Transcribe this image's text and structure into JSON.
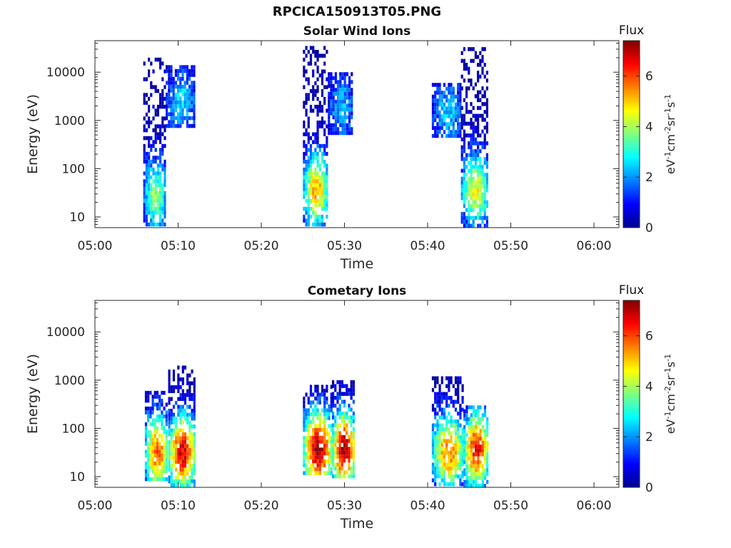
{
  "figure": {
    "title": "RPCICA150913T05.PNG"
  },
  "colors": {
    "jet": [
      "#00008f",
      "#0000ff",
      "#0080ff",
      "#00ffff",
      "#80ff80",
      "#ffff00",
      "#ff8000",
      "#ff0000",
      "#800000"
    ],
    "axis": "#262626",
    "background": "#ffffff"
  },
  "chart_data": [
    {
      "type": "heatmap",
      "title": "Solar Wind Ions",
      "xlabel": "Time",
      "ylabel": "Energy (eV)",
      "yscale": "log",
      "xlim": [
        "05:00",
        "06:03"
      ],
      "ylim": [
        6,
        45000
      ],
      "x_ticks": [
        "05:00",
        "05:10",
        "05:20",
        "05:30",
        "05:40",
        "05:50",
        "06:00"
      ],
      "y_ticks": [
        10,
        100,
        1000,
        10000
      ],
      "y_tick_labels": [
        "10",
        "100",
        "1000",
        "10000"
      ],
      "colorbar": {
        "title": "Flux",
        "label": "eV-1cm-2sr-1s-1",
        "label_parts": [
          [
            "eV",
            ""
          ],
          [
            "-1",
            "sup"
          ],
          [
            "cm",
            ""
          ],
          [
            "-2",
            "sup"
          ],
          [
            "sr",
            ""
          ],
          [
            "-1",
            "sup"
          ],
          [
            "s",
            ""
          ],
          [
            "-1",
            "sup"
          ]
        ],
        "range": [
          0,
          7.4
        ],
        "ticks": [
          0,
          2,
          4,
          6
        ]
      },
      "bursts": [
        {
          "start": "05:05.8",
          "end": "05:08.5",
          "emin": 6,
          "emax": 20000,
          "peak_energy": 30,
          "peak_flux": 3.8
        },
        {
          "start": "05:08.5",
          "end": "05:12.0",
          "emin": 700,
          "emax": 14000,
          "peak_energy": 2500,
          "peak_flux": 2.5
        },
        {
          "start": "05:25.0",
          "end": "05:28.0",
          "emin": 6,
          "emax": 35000,
          "peak_energy": 40,
          "peak_flux": 5.2
        },
        {
          "start": "05:28.0",
          "end": "05:31.0",
          "emin": 500,
          "emax": 10000,
          "peak_energy": 2000,
          "peak_flux": 2.2
        },
        {
          "start": "05:40.5",
          "end": "05:44.0",
          "emin": 400,
          "emax": 6000,
          "peak_energy": 1500,
          "peak_flux": 2.3
        },
        {
          "start": "05:44.0",
          "end": "05:47.3",
          "emin": 6,
          "emax": 33000,
          "peak_energy": 40,
          "peak_flux": 4.5
        }
      ]
    },
    {
      "type": "heatmap",
      "title": "Cometary Ions",
      "xlabel": "Time",
      "ylabel": "Energy (eV)",
      "yscale": "log",
      "xlim": [
        "05:00",
        "06:03"
      ],
      "ylim": [
        6,
        45000
      ],
      "x_ticks": [
        "05:00",
        "05:10",
        "05:20",
        "05:30",
        "05:40",
        "05:50",
        "06:00"
      ],
      "y_ticks": [
        10,
        100,
        1000,
        10000
      ],
      "y_tick_labels": [
        "10",
        "100",
        "1000",
        "10000"
      ],
      "colorbar": {
        "title": "Flux",
        "label": "eV-1cm-2sr-1s-1",
        "label_parts": [
          [
            "eV",
            ""
          ],
          [
            "-1",
            "sup"
          ],
          [
            "cm",
            ""
          ],
          [
            "-2",
            "sup"
          ],
          [
            "sr",
            ""
          ],
          [
            "-1",
            "sup"
          ],
          [
            "s",
            ""
          ],
          [
            "-1",
            "sup"
          ]
        ],
        "range": [
          0,
          7.4
        ],
        "ticks": [
          0,
          2,
          4,
          6
        ]
      },
      "bursts": [
        {
          "start": "05:06.0",
          "end": "05:08.8",
          "emin": 8,
          "emax": 600,
          "peak_energy": 35,
          "peak_flux": 5.8
        },
        {
          "start": "05:08.8",
          "end": "05:12.0",
          "emin": 6,
          "emax": 2000,
          "peak_energy": 35,
          "peak_flux": 6.8
        },
        {
          "start": "05:25.0",
          "end": "05:28.5",
          "emin": 10,
          "emax": 800,
          "peak_energy": 40,
          "peak_flux": 7.2
        },
        {
          "start": "05:28.5",
          "end": "05:31.2",
          "emin": 10,
          "emax": 1000,
          "peak_energy": 40,
          "peak_flux": 7.3
        },
        {
          "start": "05:40.5",
          "end": "05:44.3",
          "emin": 6,
          "emax": 1200,
          "peak_energy": 35,
          "peak_flux": 5.6
        },
        {
          "start": "05:44.3",
          "end": "05:47.3",
          "emin": 6,
          "emax": 300,
          "peak_energy": 40,
          "peak_flux": 6.5
        }
      ]
    }
  ]
}
